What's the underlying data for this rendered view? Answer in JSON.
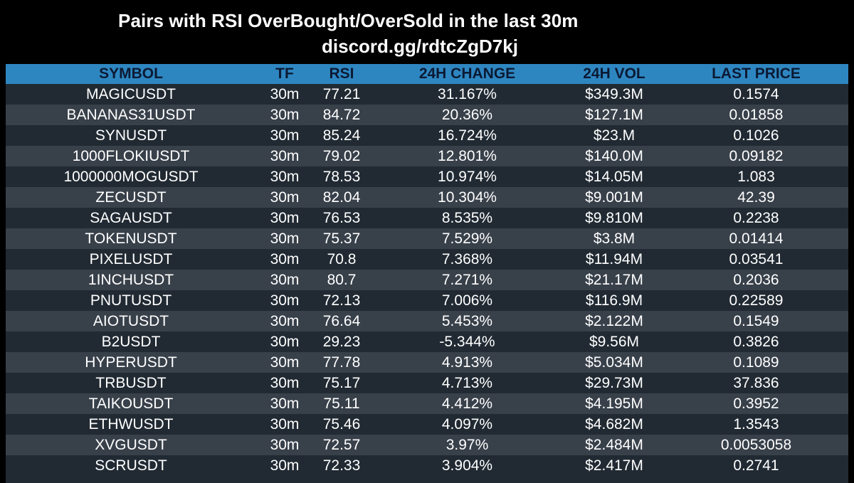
{
  "header": {
    "title": "Pairs with RSI OverBought/OverSold in the last 30m",
    "subtitle": "discord.gg/rdtcZgD7kj"
  },
  "table": {
    "columns": [
      "SYMBOL",
      "TF",
      "RSI",
      "24H CHANGE",
      "24H VOL",
      "LAST PRICE"
    ],
    "rows": [
      [
        "MAGICUSDT",
        "30m",
        "77.21",
        "31.167%",
        "$349.3M",
        "0.1574"
      ],
      [
        "BANANAS31USDT",
        "30m",
        "84.72",
        "20.36%",
        "$127.1M",
        "0.01858"
      ],
      [
        "SYNUSDT",
        "30m",
        "85.24",
        "16.724%",
        "$23.M",
        "0.1026"
      ],
      [
        "1000FLOKIUSDT",
        "30m",
        "79.02",
        "12.801%",
        "$140.0M",
        "0.09182"
      ],
      [
        "1000000MOGUSDT",
        "30m",
        "78.53",
        "10.974%",
        "$14.05M",
        "1.083"
      ],
      [
        "ZECUSDT",
        "30m",
        "82.04",
        "10.304%",
        "$9.001M",
        "42.39"
      ],
      [
        "SAGAUSDT",
        "30m",
        "76.53",
        "8.535%",
        "$9.810M",
        "0.2238"
      ],
      [
        "TOKENUSDT",
        "30m",
        "75.37",
        "7.529%",
        "$3.8M",
        "0.01414"
      ],
      [
        "PIXELUSDT",
        "30m",
        "70.8",
        "7.368%",
        "$11.94M",
        "0.03541"
      ],
      [
        "1INCHUSDT",
        "30m",
        "80.7",
        "7.271%",
        "$21.17M",
        "0.2036"
      ],
      [
        "PNUTUSDT",
        "30m",
        "72.13",
        "7.006%",
        "$116.9M",
        "0.22589"
      ],
      [
        "AIOTUSDT",
        "30m",
        "76.64",
        "5.453%",
        "$2.122M",
        "0.1549"
      ],
      [
        "B2USDT",
        "30m",
        "29.23",
        "-5.344%",
        "$9.56M",
        "0.3826"
      ],
      [
        "HYPERUSDT",
        "30m",
        "77.78",
        "4.913%",
        "$5.034M",
        "0.1089"
      ],
      [
        "TRBUSDT",
        "30m",
        "75.17",
        "4.713%",
        "$29.73M",
        "37.836"
      ],
      [
        "TAIKOUSDT",
        "30m",
        "75.11",
        "4.412%",
        "$4.195M",
        "0.3952"
      ],
      [
        "ETHWUSDT",
        "30m",
        "75.46",
        "4.097%",
        "$4.682M",
        "1.3543"
      ],
      [
        "XVGUSDT",
        "30m",
        "72.57",
        "3.97%",
        "$2.484M",
        "0.0053058"
      ],
      [
        "SCRUSDT",
        "30m",
        "72.33",
        "3.904%",
        "$2.417M",
        "0.2741"
      ]
    ]
  },
  "colors": {
    "background": "#000000",
    "header_bg": "#2e86c1",
    "header_text": "#0b1a33",
    "row_dark": "#212a33",
    "row_light": "#38404a",
    "text": "#ffffff"
  }
}
